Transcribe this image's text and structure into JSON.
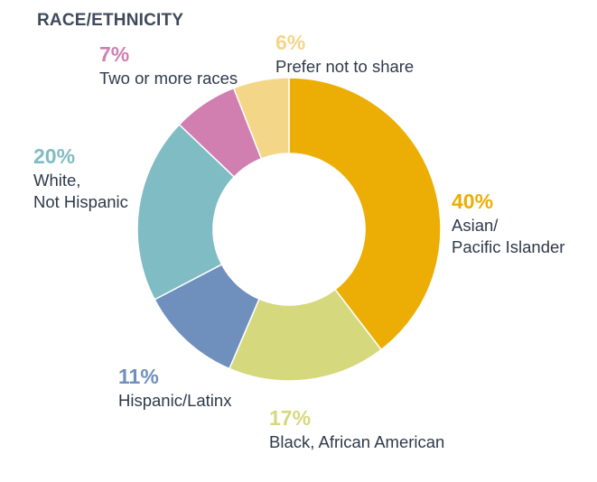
{
  "header": {
    "title": "RACE/ETHNICITY"
  },
  "chart_data": {
    "type": "pie",
    "variant": "donut",
    "title": "RACE/ETHNICITY",
    "unit": "%",
    "slices": [
      {
        "label": "Asian/ Pacific Islander",
        "lines": [
          "Asian/",
          "Pacific Islander"
        ],
        "value": 40,
        "pct_text": "40%",
        "color": "#ecae05"
      },
      {
        "label": "Black, African American",
        "lines": [
          "Black, African American"
        ],
        "value": 17,
        "pct_text": "17%",
        "color": "#d6d87d"
      },
      {
        "label": "Hispanic/Latinx",
        "lines": [
          "Hispanic/Latinx"
        ],
        "value": 11,
        "pct_text": "11%",
        "color": "#6f8fbd"
      },
      {
        "label": "White, Not Hispanic",
        "lines": [
          "White,",
          "Not Hispanic"
        ],
        "value": 20,
        "pct_text": "20%",
        "color": "#80bcc4"
      },
      {
        "label": "Two or more races",
        "lines": [
          "Two or more races"
        ],
        "value": 7,
        "pct_text": "7%",
        "color": "#d17fb1"
      },
      {
        "label": "Prefer not to share",
        "lines": [
          "Prefer not to share"
        ],
        "value": 6,
        "pct_text": "6%",
        "color": "#f4d689"
      }
    ]
  }
}
